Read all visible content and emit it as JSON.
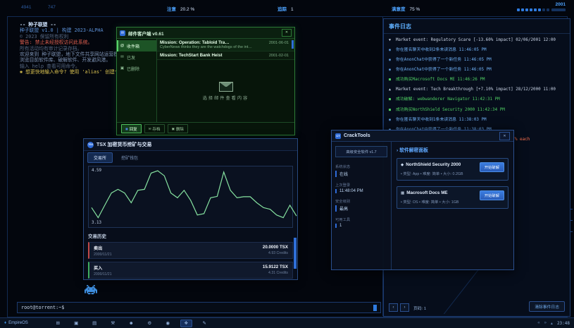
{
  "topbar": {
    "left_stats": [
      "4941",
      "747"
    ],
    "attention_label": "注意",
    "attention_value": "20.2 %",
    "trace_label": "追踪",
    "trace_value": "1",
    "mood_label": "满意度",
    "mood_value": "75 %",
    "year": "2001",
    "year_dots_total": 8,
    "year_dots_active": 6
  },
  "terminal_intro": {
    "lines": [
      {
        "text": "-- 种子联盟 --",
        "cls": "t-title"
      },
      {
        "text": "种子联盟 v1.0 | 构建 2023-ALPHA",
        "cls": "t-blue"
      },
      {
        "text": "© 2023 保留所有权利",
        "cls": "t-dim"
      },
      {
        "text": "警告: 禁止未经授权访问此系统。",
        "cls": "t-warn"
      },
      {
        "text": "所有活动均有审计记录存档。",
        "cls": "t-dim"
      },
      {
        "text": "欢迎来到 种子联盟，地下文件共享网站运营模拟。",
        "cls": "t-body"
      },
      {
        "text": "浏览目前软件库、破解软件、开发避风港。",
        "cls": "t-body"
      },
      {
        "text": "输入 help 查看可用命令。",
        "cls": "t-dim"
      },
      {
        "text": "✱ 想更快地输入命令? 使用 'alias' 创建个性化快捷方式!",
        "cls": "t-tip"
      }
    ]
  },
  "mail": {
    "title": "邮件客户端 v0.61",
    "close_label": "✕",
    "folders": [
      {
        "glyph": "@",
        "icon_name": "inbox-icon",
        "label": "收件箱",
        "state": "active"
      },
      {
        "glyph": "✉",
        "icon_name": "sent-icon",
        "label": "已发",
        "state": ""
      },
      {
        "glyph": "▣",
        "icon_name": "trash-icon",
        "label": "已删除",
        "state": ""
      }
    ],
    "messages": [
      {
        "title": "Mission: Operation: Tabloid Tra…",
        "date": "2001-06-01",
        "preview": "CyberNews thinks they are the watchdogs of the int…",
        "state": "sel"
      },
      {
        "title": "Mission: TechStart Bank Heist",
        "date": "2001-02-01",
        "preview": "",
        "state": ""
      }
    ],
    "empty_hint": "选择邮件查看内容",
    "buttons": [
      {
        "label": "回复",
        "glyph": "◼",
        "icon_name": "reply-icon",
        "state": "primary"
      },
      {
        "label": "存档",
        "glyph": "✉",
        "icon_name": "archive-icon",
        "state": ""
      },
      {
        "label": "删除",
        "glyph": "▣",
        "icon_name": "delete-icon",
        "state": ""
      }
    ]
  },
  "tsx": {
    "title": "TSX 加密货币挖矿与交易",
    "icon_text": "TSX",
    "tabs": [
      {
        "label": "交易所",
        "state": "active"
      },
      {
        "label": "挖矿钱包",
        "state": ""
      }
    ],
    "high_label": "4.59",
    "low_label": "3.13",
    "history_title": "交易历史",
    "trades": [
      {
        "side": "卖出",
        "date": "2000/11/21",
        "amount": "20.0000 TSX",
        "credits": "4.93 Credits",
        "state": "sell"
      },
      {
        "side": "买入",
        "date": "2000/11/21",
        "amount": "15.9122 TSX",
        "credits": "4.31 Credits",
        "state": "buy"
      }
    ]
  },
  "chart_data": {
    "type": "line",
    "title": "TSX 价格走势",
    "ylim": [
      3.13,
      4.59
    ],
    "high": 4.59,
    "low": 3.13,
    "grid": false,
    "line_color": "#86e2a0",
    "values": [
      3.5,
      3.2,
      3.57,
      3.93,
      4.04,
      3.93,
      3.64,
      4.01,
      4.04,
      4.52,
      4.59,
      4.44,
      3.93,
      3.79,
      4.01,
      3.71,
      3.28,
      3.32,
      3.79,
      3.83,
      4.55,
      4.01,
      3.79,
      3.82,
      3.82,
      3.64,
      3.5,
      3.45,
      3.28,
      3.2,
      3.57,
      3.25
    ]
  },
  "crack": {
    "title": "CrackTools",
    "icon_text": "CT",
    "close_label": "✕",
    "version_chip": "高级安全软件 v1.7",
    "stats": [
      {
        "label": "系统状态",
        "value": "在线"
      },
      {
        "label": "上次登录",
        "value": "11:48:04 PM"
      },
      {
        "label": "安全级别",
        "value": "最高"
      },
      {
        "label": "可用工具",
        "value": "1"
      }
    ],
    "panel_title": "› 软件解密面板",
    "cards": [
      {
        "glyph": "◆",
        "icon_name": "shield-icon",
        "name": "NorthShield Security 2000",
        "meta": "• 类型: App   • 难度: 简单   • 大小: 0.2GB",
        "button": "开始破解"
      },
      {
        "glyph": "▦",
        "icon_name": "monitor-icon",
        "name": "Macrosoft Docs ME",
        "meta": "• 类型: OS   • 难度: 简单   • 大小: 1GB",
        "button": "开始破解"
      }
    ]
  },
  "events": {
    "title": "事件日志",
    "entries": [
      {
        "glyph": "▼",
        "icon_name": "market-down-icon",
        "type": "ev-white",
        "text": "Market event: Regulatory Scare [-13.60% impact] 02/06/2001 12:00"
      },
      {
        "glyph": "◉",
        "icon_name": "bell-icon",
        "type": "ev-blue",
        "text": "你在匿名聊天中收到2条未读消息 11:46:05 PM"
      },
      {
        "glyph": "◉",
        "icon_name": "bell-icon",
        "type": "ev-blue",
        "text": "你在AnonChat中获得了一个新任务 11:46:05 PM"
      },
      {
        "glyph": "◉",
        "icon_name": "bell-icon",
        "type": "ev-blue",
        "text": "你在AnonChat中获得了一个新任务 11:46:05 PM"
      },
      {
        "glyph": "■",
        "icon_name": "check-icon",
        "type": "ev-green",
        "text": "成功购买Macrosoft Docs ME 11:46:26 PM"
      },
      {
        "glyph": "▲",
        "icon_name": "market-up-icon",
        "type": "ev-white",
        "text": "Market event: Tech Breakthrough [+7.10% impact] 28/12/2000 11:00"
      },
      {
        "glyph": "■",
        "icon_name": "check-icon",
        "type": "ev-green",
        "text": "成功破解: webwanderer Navigator 11:42:31 PM"
      },
      {
        "glyph": "■",
        "icon_name": "check-icon",
        "type": "ev-green",
        "text": "成功购买NorthShield Security 2000 11:42:34 PM"
      },
      {
        "glyph": "◉",
        "icon_name": "bell-icon",
        "type": "ev-blue",
        "text": "你在匿名聊天中收到1条未读消息 11:38:03 PM"
      },
      {
        "glyph": "◉",
        "icon_name": "bell-icon",
        "type": "ev-blue",
        "text": "你在AnonChat中获得了一个新任务 11:38:03 PM"
      },
      {
        "glyph": "▲",
        "icon_name": "alert-icon",
        "type": "ev-red",
        "text": "市场事件: Data Leak — Mystery coup credits by 1.7% each"
      }
    ],
    "page_prev": "‹",
    "page_next": "›",
    "page_label": "页码: 1",
    "clear_button": "清除事件日志"
  },
  "terminal": {
    "prompt": "root@torrent:~$"
  },
  "taskbar": {
    "brand": "EmpireOS",
    "brand_glyph": "♦",
    "icons": [
      {
        "glyph": "⊞",
        "icon_name": "apps-icon",
        "state": ""
      },
      {
        "glyph": "▣",
        "icon_name": "trash-icon",
        "state": ""
      },
      {
        "glyph": "▤",
        "icon_name": "chart-icon",
        "state": ""
      },
      {
        "glyph": "⚒",
        "icon_name": "mining-icon",
        "state": ""
      },
      {
        "glyph": "☻",
        "icon_name": "profile-icon",
        "state": ""
      },
      {
        "glyph": "⚙",
        "icon_name": "settings-icon",
        "state": ""
      },
      {
        "glyph": "◉",
        "icon_name": "browser-icon",
        "state": ""
      },
      {
        "glyph": "❖",
        "icon_name": "chat-icon",
        "state": "active"
      },
      {
        "glyph": "✎",
        "icon_name": "tools-icon",
        "state": ""
      }
    ],
    "tray_glyphs": [
      "«",
      "»",
      "▴"
    ],
    "clock": "23:48"
  },
  "colors": {
    "accent": "#2f7bde",
    "green": "#57d06a",
    "red": "#ff7350",
    "chart_line": "#86e2a0",
    "mail_green": "#2c7a36"
  }
}
